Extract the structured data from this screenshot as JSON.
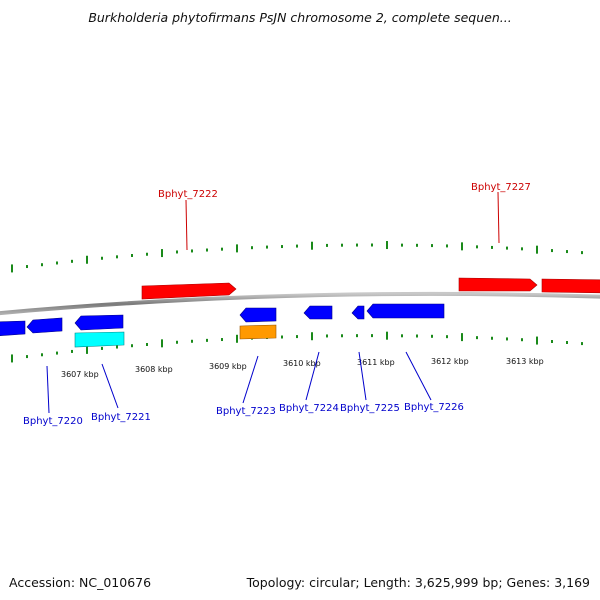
{
  "title": "Burkholderia phytofirmans PsJN chromosome 2, complete sequen...",
  "footer": {
    "accession": "Accession: NC_010676",
    "stats": "Topology: circular; Length: 3,625,999 bp; Genes: 3,169"
  },
  "colors": {
    "forward_gene": "#ff0000",
    "reverse_gene": "#0000ff",
    "cyan_gene": "#00ffff",
    "orange_gene": "#ff9900",
    "tick": "#1a8a1a",
    "backbone": "#8a8a8a",
    "label_forward": "#cc0000",
    "label_reverse": "#0000cc"
  },
  "scale": {
    "unit": "kbp",
    "tick_labels": [
      "3607 kbp",
      "3608 kbp",
      "3609 kbp",
      "3610 kbp",
      "3611 kbp",
      "3612 kbp",
      "3613 kbp"
    ]
  },
  "genes_forward": [
    {
      "label": "Bphyt_7222"
    },
    {
      "label": "Bphyt_7227"
    }
  ],
  "genes_reverse": [
    {
      "label": "Bphyt_7220"
    },
    {
      "label": "Bphyt_7221"
    },
    {
      "label": "Bphyt_7223"
    },
    {
      "label": "Bphyt_7224"
    },
    {
      "label": "Bphyt_7225"
    },
    {
      "label": "Bphyt_7226"
    }
  ]
}
